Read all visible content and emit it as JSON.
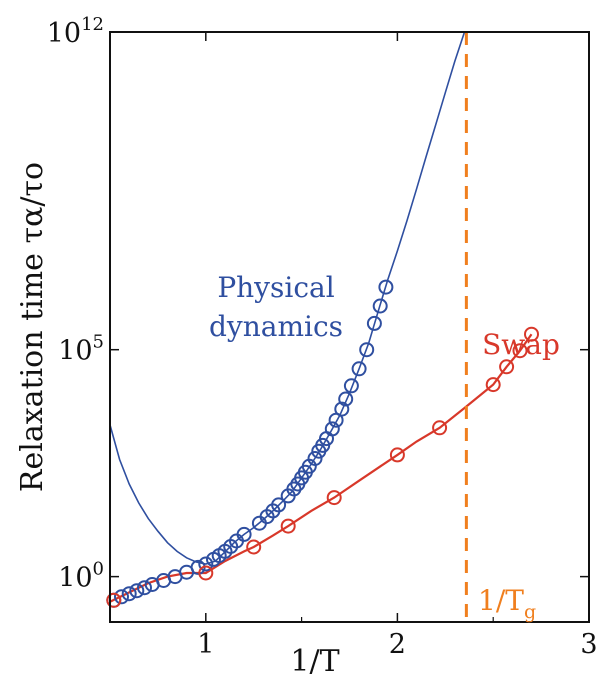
{
  "chart_data": {
    "type": "scatter",
    "xlabel": "1/T",
    "ylabel": "Relaxation time τα/τo",
    "xlim": [
      0.5,
      3
    ],
    "y_scale": "log",
    "ylim": [
      0.1,
      1000000000000.0
    ],
    "x_ticks": [
      "1",
      "2",
      "3"
    ],
    "y_ticks": [
      "10^0",
      "10^5",
      "10^12"
    ],
    "grid": false,
    "series": [
      {
        "name": "Physical dynamics",
        "color": "#2f4fa0",
        "marker": "open-circle",
        "points": [
          [
            0.52,
            0.3
          ],
          [
            0.56,
            0.36
          ],
          [
            0.6,
            0.42
          ],
          [
            0.64,
            0.49
          ],
          [
            0.68,
            0.57
          ],
          [
            0.72,
            0.67
          ],
          [
            0.78,
            0.82
          ],
          [
            0.84,
            1.0
          ],
          [
            0.9,
            1.25
          ],
          [
            0.96,
            1.6
          ],
          [
            1.0,
            1.9
          ],
          [
            1.04,
            2.4
          ],
          [
            1.07,
            2.9
          ],
          [
            1.1,
            3.6
          ],
          [
            1.13,
            4.6
          ],
          [
            1.16,
            6.1
          ],
          [
            1.2,
            8.5
          ],
          [
            1.28,
            15
          ],
          [
            1.32,
            21
          ],
          [
            1.35,
            28
          ],
          [
            1.38,
            38
          ],
          [
            1.43,
            60
          ],
          [
            1.46,
            85
          ],
          [
            1.48,
            110
          ],
          [
            1.5,
            150
          ],
          [
            1.52,
            200
          ],
          [
            1.54,
            270
          ],
          [
            1.57,
            400
          ],
          [
            1.59,
            580
          ],
          [
            1.61,
            780
          ],
          [
            1.63,
            1100
          ],
          [
            1.66,
            1800
          ],
          [
            1.68,
            2800
          ],
          [
            1.71,
            4900
          ],
          [
            1.73,
            8200
          ],
          [
            1.76,
            16000
          ],
          [
            1.8,
            38000
          ],
          [
            1.84,
            100000
          ],
          [
            1.88,
            380000
          ],
          [
            1.91,
            920000
          ],
          [
            1.94,
            2400000
          ]
        ]
      },
      {
        "name": "Swap",
        "color": "#d8382a",
        "marker": "open-circle",
        "points": [
          [
            0.52,
            0.3
          ],
          [
            1.0,
            1.2
          ],
          [
            1.25,
            4.5
          ],
          [
            1.43,
            13
          ],
          [
            1.67,
            55
          ],
          [
            2.0,
            480
          ],
          [
            2.22,
            1900
          ],
          [
            2.5,
            17000
          ],
          [
            2.57,
            42000
          ],
          [
            2.64,
            95000
          ],
          [
            2.7,
            220000
          ]
        ]
      }
    ],
    "fits": [
      {
        "name": "Physical dynamics fit",
        "color": "#2f4fa0",
        "points": [
          [
            0.5,
            2200
          ],
          [
            0.55,
            380
          ],
          [
            0.6,
            110
          ],
          [
            0.65,
            42
          ],
          [
            0.7,
            19
          ],
          [
            0.75,
            10
          ],
          [
            0.8,
            5.6
          ],
          [
            0.85,
            3.6
          ],
          [
            0.9,
            2.6
          ],
          [
            0.95,
            2.1
          ],
          [
            1.0,
            1.9
          ],
          [
            1.05,
            2.2
          ],
          [
            1.1,
            3.5
          ],
          [
            1.15,
            5.7
          ],
          [
            1.2,
            8.5
          ],
          [
            1.25,
            12
          ],
          [
            1.3,
            18
          ],
          [
            1.35,
            28
          ],
          [
            1.4,
            45
          ],
          [
            1.45,
            75
          ],
          [
            1.5,
            150
          ],
          [
            1.55,
            300
          ],
          [
            1.6,
            650
          ],
          [
            1.65,
            1500
          ],
          [
            1.7,
            3600
          ],
          [
            1.75,
            11000
          ],
          [
            1.8,
            38000
          ],
          [
            1.85,
            140000
          ],
          [
            1.9,
            700000
          ],
          [
            1.95,
            3500000
          ],
          [
            2.0,
            15000000
          ],
          [
            2.05,
            70000000
          ],
          [
            2.1,
            350000000
          ],
          [
            2.15,
            1800000000
          ],
          [
            2.2,
            9000000000
          ],
          [
            2.25,
            46000000000
          ],
          [
            2.3,
            230000000000
          ],
          [
            2.35,
            1000000000000
          ]
        ]
      },
      {
        "name": "Swap fit",
        "color": "#d8382a",
        "points": [
          [
            0.5,
            0.28
          ],
          [
            0.6,
            0.45
          ],
          [
            0.7,
            0.72
          ],
          [
            0.8,
            1.0
          ],
          [
            0.9,
            1.2
          ],
          [
            1.0,
            1.2
          ],
          [
            1.1,
            2.2
          ],
          [
            1.2,
            3.6
          ],
          [
            1.25,
            4.5
          ],
          [
            1.35,
            8
          ],
          [
            1.43,
            13
          ],
          [
            1.55,
            28
          ],
          [
            1.67,
            55
          ],
          [
            1.8,
            130
          ],
          [
            1.9,
            250
          ],
          [
            2.0,
            480
          ],
          [
            2.1,
            950
          ],
          [
            2.22,
            1900
          ],
          [
            2.35,
            5200
          ],
          [
            2.5,
            17000
          ],
          [
            2.57,
            42000
          ],
          [
            2.64,
            95000
          ],
          [
            2.7,
            220000
          ]
        ]
      }
    ],
    "reference_lines": [
      {
        "type": "vertical",
        "x": 2.36,
        "color": "#f07f1e",
        "style": "dashed"
      }
    ],
    "annotations": {
      "physical_line1": "Physical",
      "physical_line2": "dynamics",
      "swap": "Swap",
      "tg_main": "1/T",
      "tg_sub": "g"
    }
  }
}
